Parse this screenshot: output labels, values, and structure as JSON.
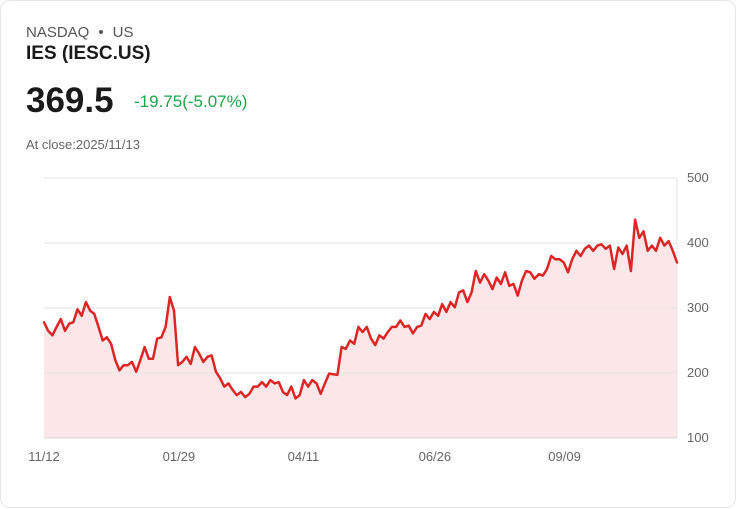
{
  "header": {
    "exchange": "NASDAQ",
    "separator": "•",
    "country": "US",
    "title": "IES (IESC.US)",
    "price": "369.5",
    "change": "-19.75(-5.07%)",
    "at_close": "At close:2025/11/13"
  },
  "colors": {
    "line": "#dc2626",
    "fill": "#fbe7e7",
    "up_down": "#1ea64a"
  },
  "chart_data": {
    "type": "area",
    "title": "IES (IESC.US)",
    "xlabel": "",
    "ylabel": "",
    "ylim": [
      100,
      500
    ],
    "yticks": [
      100,
      200,
      300,
      400,
      500
    ],
    "x_range_days": [
      0,
      366
    ],
    "xticks": [
      {
        "day": 0,
        "label": "11/12"
      },
      {
        "day": 78,
        "label": "01/29"
      },
      {
        "day": 150,
        "label": "04/11"
      },
      {
        "day": 226,
        "label": "06/26"
      },
      {
        "day": 301,
        "label": "09/09"
      }
    ],
    "grid": true,
    "values": [
      278,
      265,
      258,
      271,
      283,
      265,
      276,
      278,
      298,
      288,
      309,
      296,
      291,
      271,
      250,
      255,
      245,
      220,
      204,
      212,
      212,
      217,
      202,
      220,
      240,
      222,
      222,
      253,
      255,
      271,
      317,
      296,
      212,
      217,
      225,
      214,
      240,
      230,
      217,
      225,
      227,
      202,
      192,
      179,
      184,
      174,
      166,
      171,
      163,
      168,
      179,
      179,
      186,
      179,
      189,
      184,
      186,
      171,
      166,
      179,
      161,
      166,
      189,
      179,
      189,
      184,
      168,
      184,
      199,
      198,
      197,
      240,
      237,
      250,
      245,
      271,
      263,
      271,
      253,
      243,
      258,
      253,
      263,
      271,
      271,
      281,
      271,
      273,
      261,
      271,
      273,
      291,
      283,
      294,
      288,
      306,
      294,
      309,
      301,
      324,
      327,
      309,
      324,
      357,
      339,
      352,
      342,
      329,
      347,
      337,
      355,
      334,
      337,
      319,
      342,
      357,
      355,
      345,
      352,
      350,
      360,
      380,
      375,
      375,
      370,
      355,
      375,
      388,
      380,
      391,
      396,
      388,
      396,
      398,
      391,
      396,
      360,
      393,
      383,
      396,
      357,
      436,
      408,
      418,
      388,
      396,
      388,
      408,
      396,
      403,
      388,
      370
    ]
  }
}
